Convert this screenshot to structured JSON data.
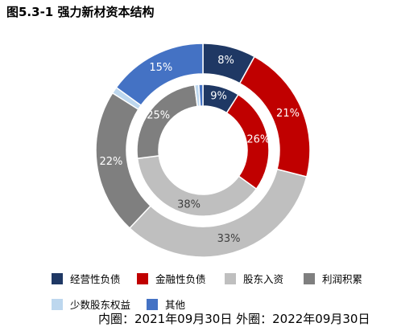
{
  "title": "图5.3-1 强力新材资本结构",
  "caption": "内圈：2021年09月30日 外圈：2022年09月30日",
  "colors": [
    "#1f3864",
    "#c00000",
    "#bfbfbf",
    "#7f7f7f",
    "#bdd7ee",
    "#4472c4"
  ],
  "chart_data": [
    {
      "type": "pie",
      "ring": "inner",
      "period": "2021年09月30日",
      "categories": [
        "经营性负债",
        "金融性负债",
        "股东入资",
        "利润积累",
        "少数股东权益",
        "其他"
      ],
      "values": [
        9,
        26,
        38,
        25,
        1,
        1
      ],
      "labels": [
        "9%",
        "26%",
        "38%",
        "25%",
        "",
        ""
      ]
    },
    {
      "type": "pie",
      "ring": "outer",
      "period": "2022年09月30日",
      "categories": [
        "经营性负债",
        "金融性负债",
        "股东入资",
        "利润积累",
        "少数股东权益",
        "其他"
      ],
      "values": [
        8,
        21,
        33,
        22,
        1,
        15
      ],
      "labels": [
        "8%",
        "21%",
        "33%",
        "22%",
        "",
        "15%"
      ]
    }
  ],
  "legend": [
    "经营性负债",
    "金融性负债",
    "股东入资",
    "利润积累",
    "少数股东权益",
    "其他"
  ]
}
